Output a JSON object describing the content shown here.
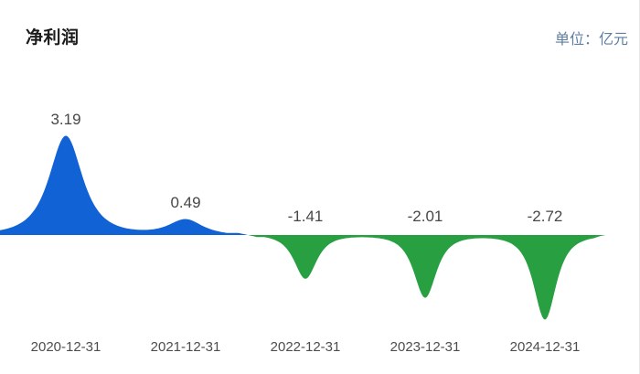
{
  "header": {
    "title": "净利润",
    "unit_label": "单位：亿元"
  },
  "chart_data": {
    "type": "area",
    "title": "净利润",
    "ylabel": "亿元",
    "categories": [
      "2020-12-31",
      "2021-12-31",
      "2022-12-31",
      "2023-12-31",
      "2024-12-31"
    ],
    "values": [
      3.19,
      0.49,
      -1.41,
      -2.01,
      -2.72
    ],
    "value_labels": [
      "3.19",
      "0.49",
      "-1.41",
      "-2.01",
      "-2.72"
    ],
    "legend": [],
    "grid": false,
    "baseline": 0,
    "positive_color": "#1062d5",
    "negative_color": "#28a042",
    "value_label_color": "#474747",
    "axis_label_color": "#4d4d4d"
  }
}
